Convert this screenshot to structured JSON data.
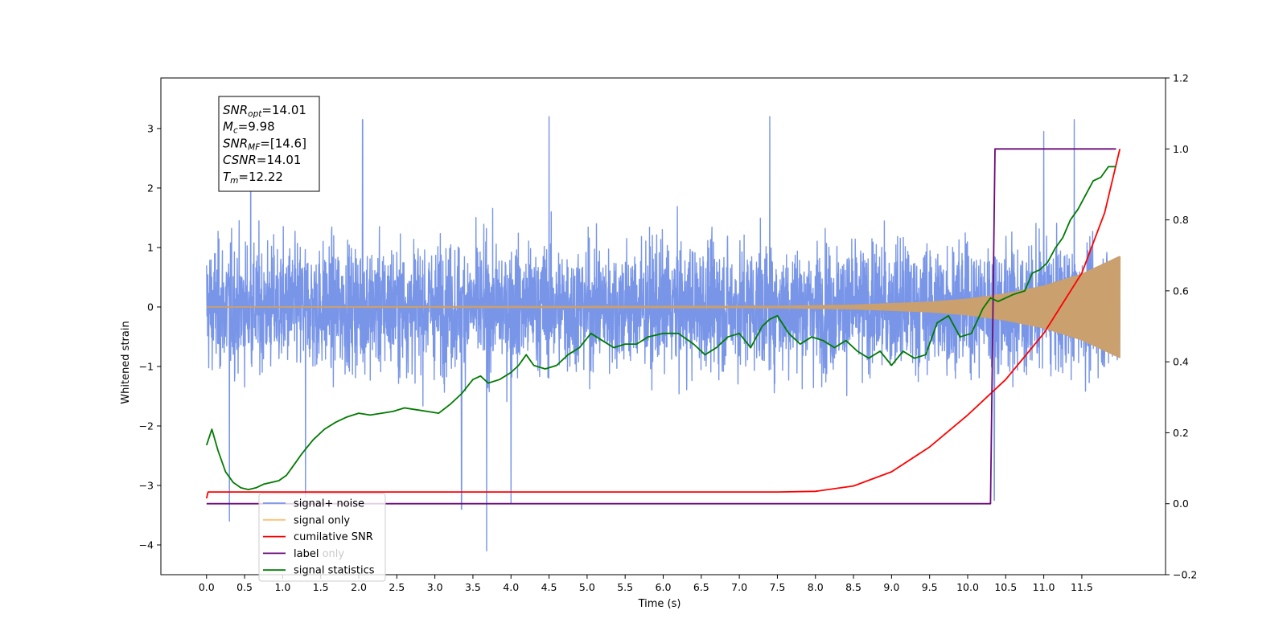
{
  "chart_data": {
    "type": "line",
    "xlabel": "Time (s)",
    "ylabel": "Whitened strain",
    "xlim": [
      -0.6,
      12.6
    ],
    "ylim_left": [
      -4.5,
      3.85
    ],
    "ylim_right": [
      -0.2,
      1.2
    ],
    "x_ticks": [
      "0.0",
      "0.5",
      "1.0",
      "1.5",
      "2.0",
      "2.5",
      "3.0",
      "3.5",
      "4.0",
      "4.5",
      "5.0",
      "5.5",
      "6.0",
      "6.5",
      "7.0",
      "7.5",
      "8.0",
      "8.5",
      "9.0",
      "9.5",
      "10.0",
      "10.5",
      "11.0",
      "11.5"
    ],
    "y_ticks_left": [
      "3",
      "2",
      "1",
      "0",
      "−1",
      "−2",
      "−3",
      "−4"
    ],
    "y_ticks_right": [
      "1.2",
      "1.0",
      "0.8",
      "0.6",
      "0.4",
      "0.2",
      "0.0",
      "−0.2"
    ],
    "grid": false,
    "legend_placement": "lower-left",
    "info_box": [
      {
        "sym": "SNR",
        "sub": "opt",
        "val": "=14.01"
      },
      {
        "sym": "M",
        "sub": "c",
        "val": "=9.98"
      },
      {
        "sym": "SNR",
        "sub": "MF",
        "val": "=[14.6]"
      },
      {
        "sym": "CSNR",
        "sub": "",
        "val": "=14.01"
      },
      {
        "sym": "T",
        "sub": "m",
        "val": "=12.22"
      }
    ],
    "series": [
      {
        "name": "signal+ noise",
        "axis": "left",
        "color": "#7895e8",
        "x_range": [
          0.0,
          12.0
        ],
        "amplitude_envelope": [
          [
            0.0,
            2.6
          ],
          [
            12.0,
            2.6
          ]
        ],
        "extremes": [
          [
            0.3,
            -3.6
          ],
          [
            0.58,
            3.1
          ],
          [
            1.3,
            -3.2
          ],
          [
            2.05,
            3.15
          ],
          [
            3.35,
            -3.4
          ],
          [
            3.68,
            -4.1
          ],
          [
            4.0,
            -3.3
          ],
          [
            4.5,
            3.2
          ],
          [
            7.4,
            3.2
          ],
          [
            10.35,
            -3.25
          ],
          [
            11.0,
            2.95
          ],
          [
            11.4,
            3.15
          ]
        ],
        "values": "stationary noise around 0 with |y| mostly below 2.6 (dense, not individually readable)"
      },
      {
        "name": "signal only",
        "axis": "left",
        "color": "#c9a06e",
        "x_range": [
          0.0,
          12.0
        ],
        "amplitude_envelope": [
          [
            0.0,
            0.0
          ],
          [
            7.5,
            0.01
          ],
          [
            8.5,
            0.03
          ],
          [
            9.5,
            0.08
          ],
          [
            10.0,
            0.13
          ],
          [
            10.5,
            0.22
          ],
          [
            11.0,
            0.35
          ],
          [
            11.5,
            0.55
          ],
          [
            12.0,
            0.85
          ]
        ]
      },
      {
        "name": "cumilative SNR",
        "axis": "right",
        "color": "#ff0000",
        "x": [
          0.0,
          0.02,
          7.5,
          8.0,
          8.5,
          9.0,
          9.5,
          10.0,
          10.5,
          11.0,
          11.5,
          11.8,
          12.0
        ],
        "values": [
          0.015,
          0.033,
          0.033,
          0.035,
          0.05,
          0.09,
          0.16,
          0.25,
          0.35,
          0.48,
          0.65,
          0.82,
          1.0
        ]
      },
      {
        "name": "label",
        "axis": "right",
        "color": "#6a0a78",
        "x": [
          0.0,
          10.3,
          10.36,
          11.95
        ],
        "values": [
          0.0,
          0.0,
          1.0,
          1.0
        ]
      },
      {
        "name": "signal statistics",
        "axis": "right",
        "color": "#007a00",
        "x": [
          0.0,
          0.07,
          0.15,
          0.25,
          0.35,
          0.45,
          0.55,
          0.65,
          0.75,
          0.85,
          0.95,
          1.05,
          1.15,
          1.25,
          1.4,
          1.55,
          1.7,
          1.85,
          2.0,
          2.15,
          2.3,
          2.45,
          2.6,
          2.75,
          2.9,
          3.05,
          3.2,
          3.35,
          3.5,
          3.6,
          3.7,
          3.85,
          4.0,
          4.1,
          4.2,
          4.3,
          4.45,
          4.6,
          4.75,
          4.9,
          5.05,
          5.2,
          5.35,
          5.5,
          5.65,
          5.8,
          6.0,
          6.2,
          6.4,
          6.55,
          6.7,
          6.85,
          7.0,
          7.15,
          7.3,
          7.4,
          7.5,
          7.65,
          7.8,
          7.95,
          8.1,
          8.25,
          8.4,
          8.55,
          8.7,
          8.85,
          9.0,
          9.15,
          9.3,
          9.45,
          9.6,
          9.75,
          9.9,
          10.05,
          10.2,
          10.3,
          10.4,
          10.5,
          10.6,
          10.75,
          10.85,
          10.95,
          11.05,
          11.15,
          11.25,
          11.35,
          11.45,
          11.55,
          11.65,
          11.75,
          11.85,
          11.95
        ],
        "values": [
          0.165,
          0.21,
          0.15,
          0.09,
          0.06,
          0.045,
          0.04,
          0.045,
          0.055,
          0.06,
          0.065,
          0.08,
          0.11,
          0.14,
          0.18,
          0.21,
          0.23,
          0.245,
          0.255,
          0.25,
          0.255,
          0.26,
          0.27,
          0.265,
          0.26,
          0.255,
          0.28,
          0.31,
          0.35,
          0.36,
          0.34,
          0.35,
          0.37,
          0.39,
          0.42,
          0.39,
          0.38,
          0.39,
          0.42,
          0.44,
          0.48,
          0.46,
          0.44,
          0.45,
          0.45,
          0.47,
          0.48,
          0.48,
          0.45,
          0.42,
          0.44,
          0.47,
          0.48,
          0.44,
          0.5,
          0.52,
          0.53,
          0.48,
          0.45,
          0.47,
          0.46,
          0.44,
          0.46,
          0.43,
          0.41,
          0.43,
          0.39,
          0.43,
          0.41,
          0.42,
          0.51,
          0.53,
          0.47,
          0.48,
          0.55,
          0.58,
          0.57,
          0.58,
          0.59,
          0.6,
          0.65,
          0.66,
          0.68,
          0.72,
          0.75,
          0.8,
          0.83,
          0.87,
          0.91,
          0.92,
          0.95,
          0.95
        ]
      }
    ],
    "legend_extra": [
      {
        "name": "label only",
        "color": "#000000",
        "ghost": true
      }
    ]
  }
}
